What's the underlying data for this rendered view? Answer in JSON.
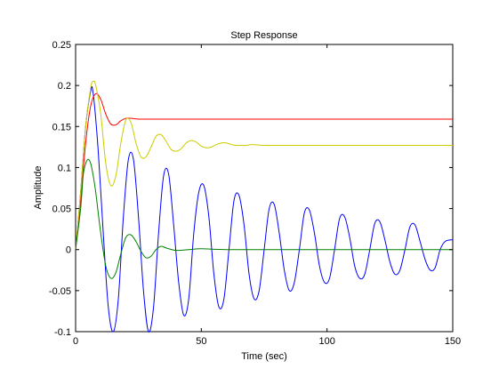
{
  "chart_data": {
    "type": "line",
    "title": "Step Response",
    "xlabel": "Time (sec)",
    "ylabel": "Amplitude",
    "xlim": [
      0,
      150
    ],
    "ylim": [
      -0.1,
      0.25
    ],
    "xticks": [
      0,
      50,
      100,
      150
    ],
    "xtick_labels": [
      "0",
      "50",
      "100",
      "150"
    ],
    "yticks": [
      -0.1,
      -0.05,
      0,
      0.05,
      0.1,
      0.15,
      0.2,
      0.25
    ],
    "ytick_labels": [
      "-0.1",
      "-0.05",
      "0",
      "0.05",
      "0.1",
      "0.15",
      "0.2",
      "0.25"
    ],
    "grid": false,
    "legend": "none",
    "series": [
      {
        "color": "#0000ff",
        "x": [
          0,
          2,
          4,
          6,
          7,
          9,
          11,
          13,
          15,
          17,
          19,
          21,
          23,
          25,
          27,
          29,
          31,
          33,
          35,
          37,
          39,
          41,
          43,
          45,
          47,
          49,
          51,
          53,
          55,
          57,
          59,
          61,
          63,
          65,
          67,
          69,
          71,
          73,
          75,
          77,
          79,
          81,
          83,
          85,
          87,
          89,
          91,
          93,
          95,
          97,
          99,
          101,
          103,
          105,
          107,
          109,
          111,
          113,
          115,
          117,
          119,
          121,
          123,
          125,
          127,
          129,
          131,
          133,
          135,
          137,
          139,
          141,
          143,
          145,
          147,
          150
        ],
        "y": [
          0,
          0.07,
          0.15,
          0.193,
          0.19,
          0.12,
          0.02,
          -0.07,
          -0.1,
          -0.06,
          0.04,
          0.11,
          0.11,
          0.04,
          -0.05,
          -0.1,
          -0.07,
          0.02,
          0.09,
          0.092,
          0.03,
          -0.04,
          -0.08,
          -0.06,
          0.02,
          0.07,
          0.078,
          0.04,
          -0.03,
          -0.07,
          -0.06,
          0.0,
          0.06,
          0.066,
          0.03,
          -0.03,
          -0.06,
          -0.05,
          0.0,
          0.05,
          0.055,
          0.02,
          -0.025,
          -0.05,
          -0.04,
          0.0,
          0.045,
          0.048,
          0.02,
          -0.02,
          -0.04,
          -0.035,
          0.0,
          0.038,
          0.04,
          0.015,
          -0.02,
          -0.035,
          -0.03,
          0.0,
          0.032,
          0.034,
          0.012,
          -0.015,
          -0.03,
          -0.025,
          0.0,
          0.028,
          0.03,
          0.01,
          -0.012,
          -0.025,
          -0.022,
          0.0,
          0.01,
          0.012
        ]
      },
      {
        "color": "#ff0000",
        "x": [
          0,
          2,
          4,
          6,
          8,
          10,
          12,
          14,
          16,
          18,
          20,
          22,
          25,
          30,
          40,
          60,
          80,
          100,
          120,
          150
        ],
        "y": [
          0,
          0.06,
          0.13,
          0.175,
          0.19,
          0.183,
          0.165,
          0.153,
          0.152,
          0.157,
          0.16,
          0.16,
          0.159,
          0.159,
          0.159,
          0.159,
          0.159,
          0.159,
          0.159,
          0.159
        ]
      },
      {
        "color": "#cccc00",
        "x": [
          0,
          2,
          4,
          6,
          7,
          8,
          10,
          12,
          14,
          16,
          18,
          20,
          22,
          24,
          26,
          28,
          30,
          32,
          34,
          36,
          38,
          40,
          42,
          44,
          46,
          48,
          50,
          52,
          54,
          56,
          58,
          60,
          62,
          64,
          66,
          68,
          70,
          75,
          80,
          90,
          100,
          120,
          150
        ],
        "y": [
          0,
          0.07,
          0.15,
          0.197,
          0.205,
          0.2,
          0.165,
          0.105,
          0.078,
          0.09,
          0.13,
          0.158,
          0.155,
          0.13,
          0.113,
          0.113,
          0.125,
          0.138,
          0.14,
          0.132,
          0.122,
          0.12,
          0.123,
          0.13,
          0.133,
          0.131,
          0.126,
          0.124,
          0.125,
          0.128,
          0.13,
          0.13,
          0.128,
          0.127,
          0.127,
          0.127,
          0.128,
          0.127,
          0.127,
          0.127,
          0.127,
          0.127,
          0.127
        ]
      },
      {
        "color": "#008000",
        "x": [
          0,
          2,
          3,
          4,
          5,
          6,
          7,
          8,
          10,
          12,
          14,
          16,
          18,
          20,
          22,
          24,
          26,
          28,
          30,
          32,
          34,
          36,
          40,
          45,
          50,
          60,
          80,
          100,
          120,
          150
        ],
        "y": [
          0,
          0.05,
          0.09,
          0.105,
          0.11,
          0.105,
          0.09,
          0.07,
          0.02,
          -0.02,
          -0.035,
          -0.028,
          -0.005,
          0.015,
          0.018,
          0.01,
          -0.002,
          -0.01,
          -0.008,
          0.0,
          0.004,
          0.002,
          -0.001,
          0.0,
          0.001,
          0.0,
          0.0,
          0.0,
          0.0,
          0.0
        ]
      }
    ]
  }
}
